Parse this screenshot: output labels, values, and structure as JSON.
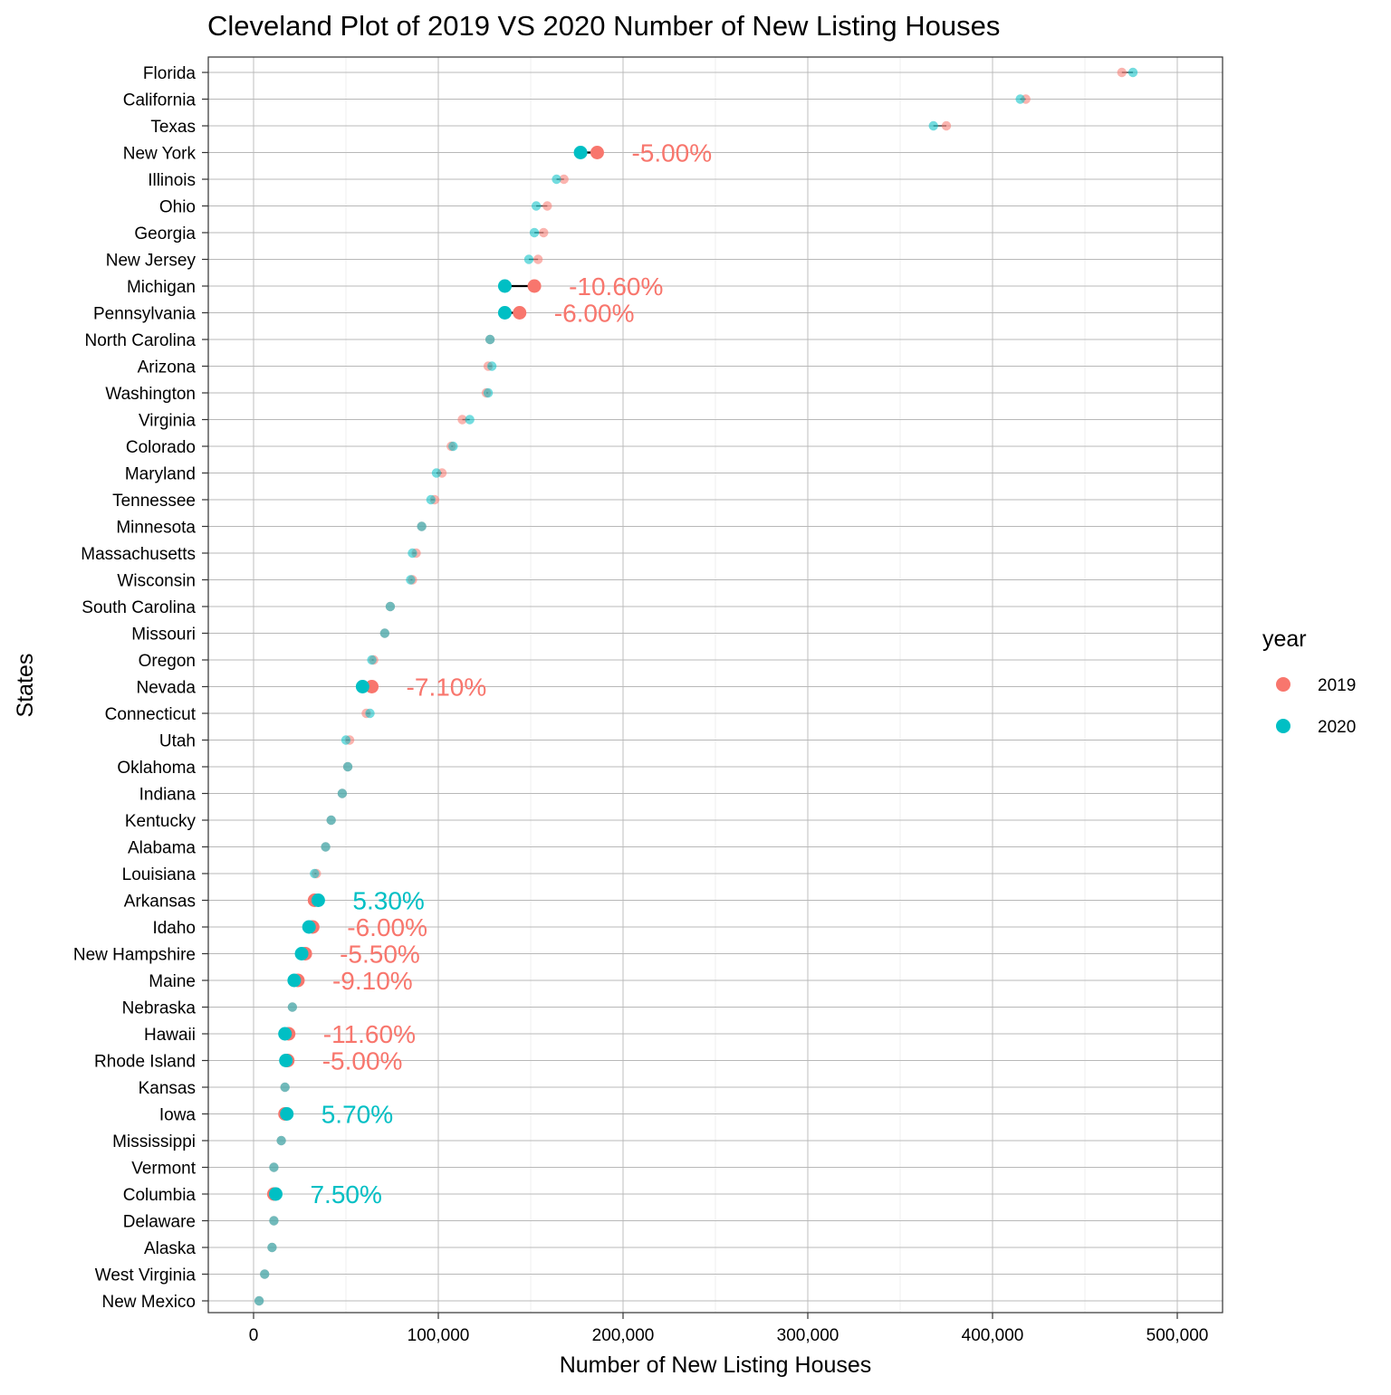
{
  "chart_data": {
    "type": "scatter",
    "subtype": "cleveland-dot",
    "title": "Cleveland Plot of 2019 VS 2020 Number of New Listing Houses",
    "xlabel": "Number of New Listing Houses",
    "ylabel": "States",
    "xlim": [
      -25000,
      525000
    ],
    "xticks": [
      0,
      100000,
      200000,
      300000,
      400000,
      500000
    ],
    "xtick_labels": [
      "0",
      "100,000",
      "200,000",
      "300,000",
      "400,000",
      "500,000"
    ],
    "grid": true,
    "legend": {
      "title": "year",
      "position": "right",
      "entries": [
        "2019",
        "2020"
      ]
    },
    "colors": {
      "2019": "#F8766D",
      "2020": "#00BFC4",
      "connector": "#000000"
    },
    "series": [
      {
        "name": "2019",
        "color": "#F8766D"
      },
      {
        "name": "2020",
        "color": "#00BFC4"
      }
    ],
    "states": [
      {
        "state": "Florida",
        "v2019": 470000,
        "v2020": 476000
      },
      {
        "state": "California",
        "v2019": 418000,
        "v2020": 415000
      },
      {
        "state": "Texas",
        "v2019": 375000,
        "v2020": 368000
      },
      {
        "state": "New York",
        "v2019": 186000,
        "v2020": 177000,
        "highlight": true,
        "label": "-5.00%"
      },
      {
        "state": "Illinois",
        "v2019": 168000,
        "v2020": 164000
      },
      {
        "state": "Ohio",
        "v2019": 159000,
        "v2020": 153000
      },
      {
        "state": "Georgia",
        "v2019": 157000,
        "v2020": 152000
      },
      {
        "state": "New Jersey",
        "v2019": 154000,
        "v2020": 149000
      },
      {
        "state": "Michigan",
        "v2019": 152000,
        "v2020": 136000,
        "highlight": true,
        "label": "-10.60%"
      },
      {
        "state": "Pennsylvania",
        "v2019": 144000,
        "v2020": 136000,
        "highlight": true,
        "label": "-6.00%"
      },
      {
        "state": "North Carolina",
        "v2019": 128000,
        "v2020": 128000
      },
      {
        "state": "Arizona",
        "v2019": 127000,
        "v2020": 129000
      },
      {
        "state": "Washington",
        "v2019": 126000,
        "v2020": 127000
      },
      {
        "state": "Virginia",
        "v2019": 113000,
        "v2020": 117000
      },
      {
        "state": "Colorado",
        "v2019": 107000,
        "v2020": 108000
      },
      {
        "state": "Maryland",
        "v2019": 102000,
        "v2020": 99000
      },
      {
        "state": "Tennessee",
        "v2019": 98000,
        "v2020": 96000
      },
      {
        "state": "Minnesota",
        "v2019": 91000,
        "v2020": 91000
      },
      {
        "state": "Massachusetts",
        "v2019": 88000,
        "v2020": 86000
      },
      {
        "state": "Wisconsin",
        "v2019": 86000,
        "v2020": 85000
      },
      {
        "state": "South Carolina",
        "v2019": 74000,
        "v2020": 74000
      },
      {
        "state": "Missouri",
        "v2019": 71000,
        "v2020": 71000
      },
      {
        "state": "Oregon",
        "v2019": 65000,
        "v2020": 64000
      },
      {
        "state": "Nevada",
        "v2019": 64000,
        "v2020": 59000,
        "highlight": true,
        "label": "-7.10%"
      },
      {
        "state": "Connecticut",
        "v2019": 61000,
        "v2020": 63000
      },
      {
        "state": "Utah",
        "v2019": 52000,
        "v2020": 50000
      },
      {
        "state": "Oklahoma",
        "v2019": 51000,
        "v2020": 51000
      },
      {
        "state": "Indiana",
        "v2019": 48000,
        "v2020": 48000
      },
      {
        "state": "Kentucky",
        "v2019": 42000,
        "v2020": 42000
      },
      {
        "state": "Alabama",
        "v2019": 39000,
        "v2020": 39000
      },
      {
        "state": "Louisiana",
        "v2019": 34000,
        "v2020": 33000
      },
      {
        "state": "Arkansas",
        "v2019": 33000,
        "v2020": 35000,
        "highlight": true,
        "label": "5.30%"
      },
      {
        "state": "Idaho",
        "v2019": 32000,
        "v2020": 30000,
        "highlight": true,
        "label": "-6.00%"
      },
      {
        "state": "New Hampshire",
        "v2019": 28000,
        "v2020": 26000,
        "highlight": true,
        "label": "-5.50%"
      },
      {
        "state": "Maine",
        "v2019": 24000,
        "v2020": 22000,
        "highlight": true,
        "label": "-9.10%"
      },
      {
        "state": "Nebraska",
        "v2019": 21000,
        "v2020": 21000
      },
      {
        "state": "Hawaii",
        "v2019": 19000,
        "v2020": 17000,
        "highlight": true,
        "label": "-11.60%"
      },
      {
        "state": "Rhode Island",
        "v2019": 18500,
        "v2020": 17500,
        "highlight": true,
        "label": "-5.00%"
      },
      {
        "state": "Kansas",
        "v2019": 17000,
        "v2020": 17000
      },
      {
        "state": "Iowa",
        "v2019": 17000,
        "v2020": 18000,
        "highlight": true,
        "label": "5.70%"
      },
      {
        "state": "Mississippi",
        "v2019": 15000,
        "v2020": 15000
      },
      {
        "state": "Vermont",
        "v2019": 11000,
        "v2020": 11000
      },
      {
        "state": "Columbia",
        "v2019": 11000,
        "v2020": 12000,
        "highlight": true,
        "label": "7.50%"
      },
      {
        "state": "Delaware",
        "v2019": 11000,
        "v2020": 11000
      },
      {
        "state": "Alaska",
        "v2019": 10000,
        "v2020": 10000
      },
      {
        "state": "West Virginia",
        "v2019": 6000,
        "v2020": 6000
      },
      {
        "state": "New Mexico",
        "v2019": 3000,
        "v2020": 3000
      }
    ]
  }
}
